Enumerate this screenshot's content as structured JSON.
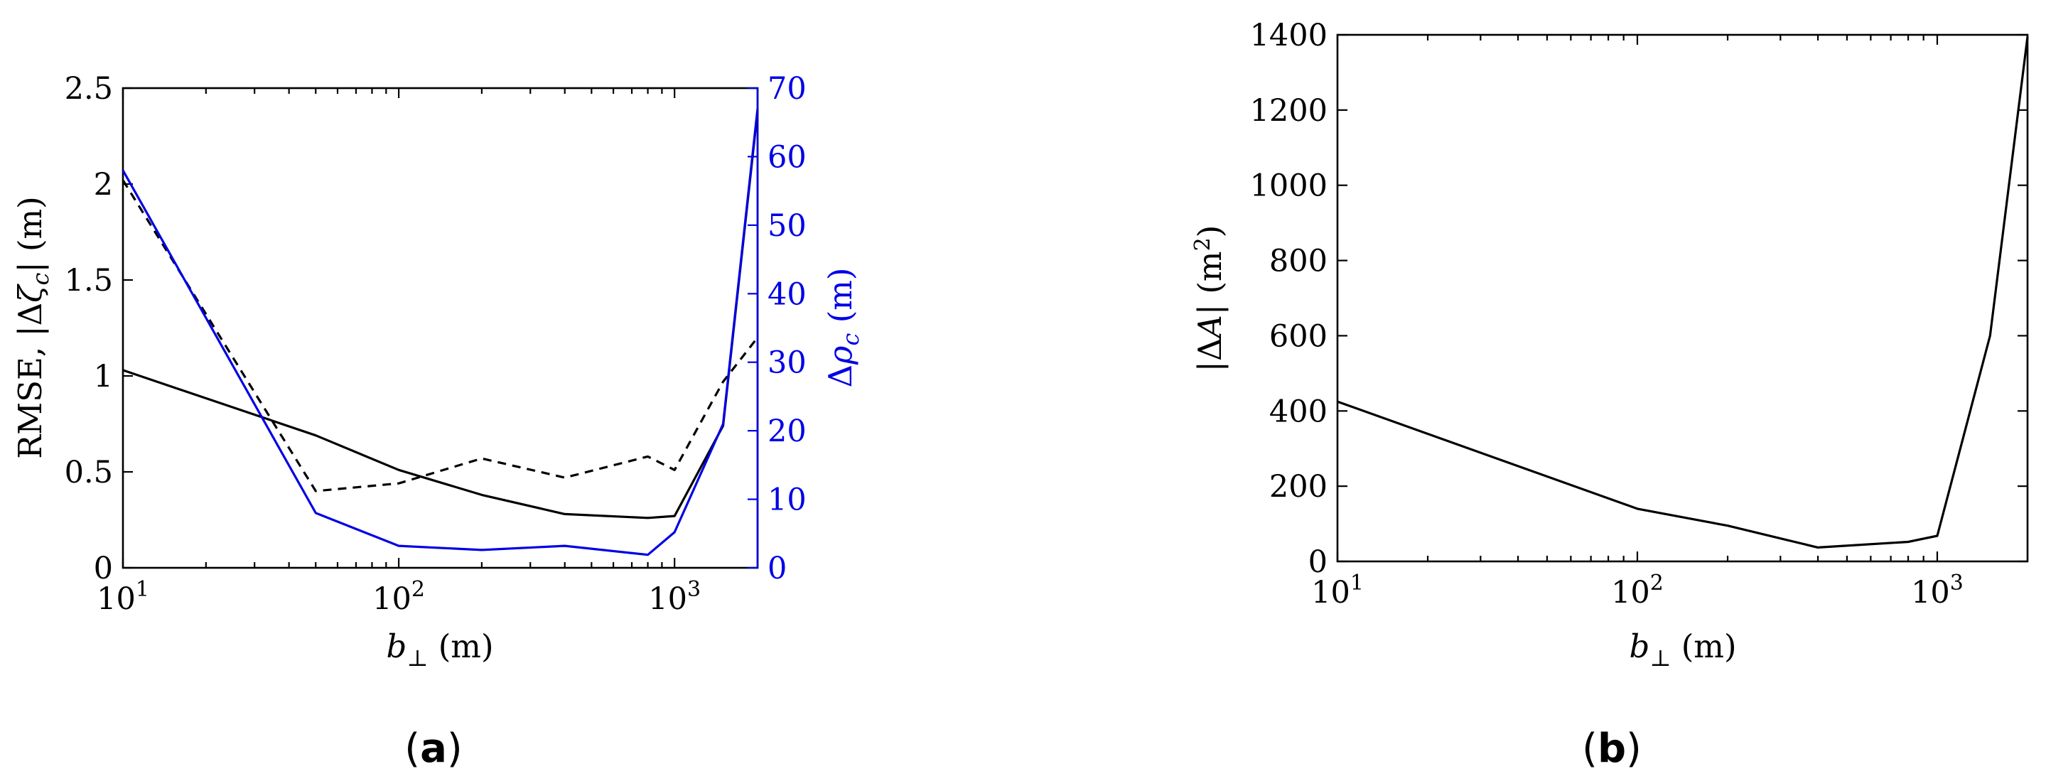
{
  "chart_data": [
    {
      "panel": "a",
      "caption": "(a)",
      "type": "line",
      "xlabel": "b⊥ (m)",
      "ylabel": "RMSE, |Δζc| (m)",
      "y2label": "Δρc (m)",
      "xscale": "log",
      "xlim": [
        10,
        2000
      ],
      "ylim": [
        0,
        2.5
      ],
      "y2lim": [
        0,
        70
      ],
      "x_ticks": [
        {
          "v": 10,
          "b": "10",
          "e": "1"
        },
        {
          "v": 100,
          "b": "10",
          "e": "2"
        },
        {
          "v": 1000,
          "b": "10",
          "e": "3"
        }
      ],
      "y_ticks": [
        "0",
        "0.5",
        "1",
        "1.5",
        "2",
        "2.5"
      ],
      "y2_ticks": [
        "0",
        "10",
        "20",
        "30",
        "40",
        "50",
        "60",
        "70"
      ],
      "colors": {
        "left": "#000000",
        "right": "#0000e6"
      },
      "series": [
        {
          "axis": "left",
          "style": "solid",
          "color": "#000000",
          "x": [
            10,
            50,
            100,
            200,
            400,
            800,
            1000,
            1500,
            2000
          ],
          "y": [
            1.03,
            0.69,
            0.51,
            0.38,
            0.28,
            0.26,
            0.27,
            0.74,
            2.38
          ]
        },
        {
          "axis": "left",
          "style": "dashed",
          "color": "#000000",
          "x": [
            10,
            50,
            100,
            200,
            400,
            800,
            1000,
            1500,
            2000
          ],
          "y": [
            2.02,
            0.4,
            0.44,
            0.57,
            0.47,
            0.58,
            0.51,
            0.97,
            1.2
          ]
        },
        {
          "axis": "right",
          "style": "solid",
          "color": "#0000e6",
          "x": [
            10,
            50,
            100,
            200,
            400,
            800,
            1000,
            1500,
            2000
          ],
          "y": [
            58,
            8,
            3.2,
            2.6,
            3.2,
            1.9,
            5.2,
            21,
            67
          ]
        }
      ]
    },
    {
      "panel": "b",
      "caption": "(b)",
      "type": "line",
      "xlabel": "b⊥ (m)",
      "ylabel": "|ΔA| (m²)",
      "xscale": "log",
      "xlim": [
        10,
        2000
      ],
      "ylim": [
        0,
        1400
      ],
      "x_ticks": [
        {
          "v": 10,
          "b": "10",
          "e": "1"
        },
        {
          "v": 100,
          "b": "10",
          "e": "2"
        },
        {
          "v": 1000,
          "b": "10",
          "e": "3"
        }
      ],
      "y_ticks": [
        "0",
        "200",
        "400",
        "600",
        "800",
        "1000",
        "1200",
        "1400"
      ],
      "series": [
        {
          "axis": "left",
          "style": "solid",
          "color": "#000000",
          "x": [
            10,
            100,
            200,
            400,
            800,
            1000,
            1500,
            2000
          ],
          "y": [
            425,
            140,
            95,
            37,
            52,
            68,
            600,
            1395
          ]
        }
      ]
    }
  ]
}
